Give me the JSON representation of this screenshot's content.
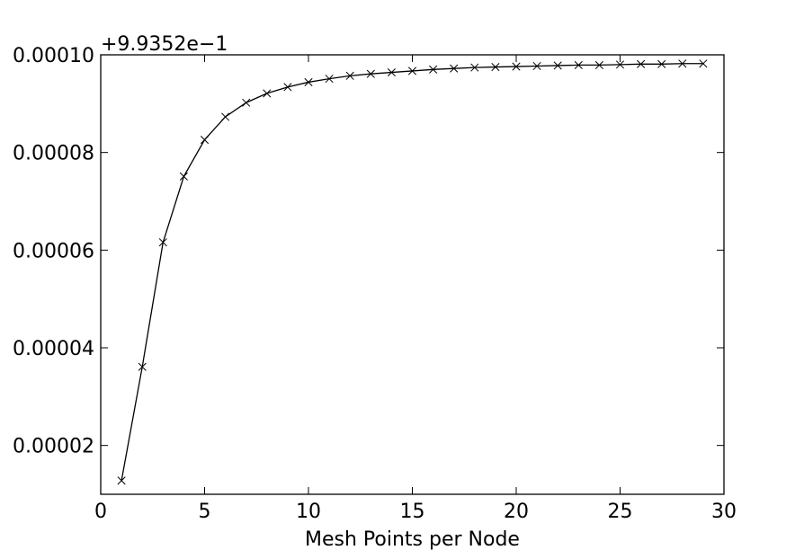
{
  "chart_data": {
    "type": "line",
    "xlabel": "Mesh Points per Node",
    "ylabel": "",
    "offset_text": "+9.9352e−1",
    "xlim": [
      0,
      30
    ],
    "ylim": [
      1e-05,
      0.0001
    ],
    "grid": false,
    "x_ticks": [
      0,
      5,
      10,
      15,
      20,
      25,
      30
    ],
    "x_tick_labels": [
      "0",
      "5",
      "10",
      "15",
      "20",
      "25",
      "30"
    ],
    "y_ticks": [
      2e-05,
      4e-05,
      6e-05,
      8e-05,
      0.0001
    ],
    "y_tick_labels": [
      "0.00002",
      "0.00004",
      "0.00006",
      "0.00008",
      "0.00010"
    ],
    "line_color": "#000000",
    "marker": "x",
    "series": [
      {
        "x": [
          1,
          2,
          3,
          4,
          5,
          6,
          7,
          8,
          9,
          10,
          11,
          12,
          13,
          14,
          15,
          16,
          17,
          18,
          19,
          20,
          21,
          22,
          23,
          24,
          25,
          26,
          27,
          28,
          29
        ],
        "values": [
          1.28e-05,
          3.61e-05,
          6.16e-05,
          7.51e-05,
          8.26e-05,
          8.73e-05,
          9.02e-05,
          9.21e-05,
          9.34e-05,
          9.44e-05,
          9.51e-05,
          9.57e-05,
          9.61e-05,
          9.64e-05,
          9.67e-05,
          9.7e-05,
          9.72e-05,
          9.74e-05,
          9.75e-05,
          9.76e-05,
          9.77e-05,
          9.78e-05,
          9.79e-05,
          9.79e-05,
          9.8e-05,
          9.81e-05,
          9.81e-05,
          9.82e-05,
          9.82e-05
        ]
      }
    ]
  }
}
